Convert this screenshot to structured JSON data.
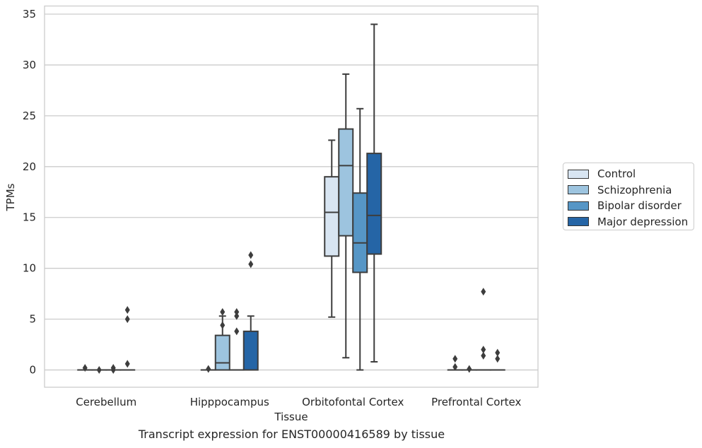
{
  "chart_data": {
    "type": "box",
    "title": "",
    "xlabel": "Tissue",
    "ylabel": "TPMs",
    "caption": "Transcript expression for ENST00000416589 by tissue",
    "ylim": [
      -1.7,
      35.8
    ],
    "yticks": [
      0,
      5,
      10,
      15,
      20,
      25,
      30,
      35
    ],
    "grid": "horizontal",
    "legend_position": "right",
    "categories": [
      "Cerebellum",
      "Hipppocampus",
      "Orbitofontal Cortex",
      "Prefrontal Cortex"
    ],
    "series": [
      {
        "name": "Control",
        "color": "#d8e5f2",
        "boxes": [
          {
            "q1": 0,
            "median": 0,
            "q3": 0,
            "whisker_low": 0,
            "whisker_high": 0,
            "outliers": [
              0.2
            ]
          },
          {
            "q1": 0,
            "median": 0,
            "q3": 0,
            "whisker_low": 0,
            "whisker_high": 0,
            "outliers": [
              0.1
            ]
          },
          {
            "q1": 11.2,
            "median": 15.5,
            "q3": 19.0,
            "whisker_low": 5.2,
            "whisker_high": 22.6,
            "outliers": []
          },
          {
            "q1": 0,
            "median": 0,
            "q3": 0,
            "whisker_low": 0,
            "whisker_high": 0,
            "outliers": [
              0.3,
              1.1
            ]
          }
        ]
      },
      {
        "name": "Schizophrenia",
        "color": "#9dc4df",
        "boxes": [
          {
            "q1": 0,
            "median": 0,
            "q3": 0,
            "whisker_low": 0,
            "whisker_high": 0,
            "outliers": [
              0.0
            ]
          },
          {
            "q1": 0,
            "median": 0.7,
            "q3": 3.4,
            "whisker_low": 0,
            "whisker_high": 5.3,
            "outliers": [
              4.4,
              5.7
            ]
          },
          {
            "q1": 13.2,
            "median": 20.1,
            "q3": 23.7,
            "whisker_low": 1.2,
            "whisker_high": 29.1,
            "outliers": []
          },
          {
            "q1": 0,
            "median": 0,
            "q3": 0,
            "whisker_low": 0,
            "whisker_high": 0,
            "outliers": [
              0.1
            ]
          }
        ]
      },
      {
        "name": "Bipolar disorder",
        "color": "#5696c6",
        "boxes": [
          {
            "q1": 0,
            "median": 0,
            "q3": 0,
            "whisker_low": 0,
            "whisker_high": 0,
            "outliers": [
              0.0,
              0.2
            ]
          },
          {
            "q1": 0,
            "median": 0,
            "q3": 0,
            "whisker_low": 0,
            "whisker_high": 0,
            "outliers": [
              3.8,
              5.3,
              5.7
            ]
          },
          {
            "q1": 9.6,
            "median": 12.5,
            "q3": 17.4,
            "whisker_low": 0,
            "whisker_high": 25.7,
            "outliers": []
          },
          {
            "q1": 0,
            "median": 0,
            "q3": 0,
            "whisker_low": 0,
            "whisker_high": 0,
            "outliers": [
              1.4,
              2.0,
              7.7
            ]
          }
        ]
      },
      {
        "name": "Major depression",
        "color": "#2565a6",
        "boxes": [
          {
            "q1": 0,
            "median": 0,
            "q3": 0,
            "whisker_low": 0,
            "whisker_high": 0,
            "outliers": [
              0.6,
              5.0,
              5.9
            ]
          },
          {
            "q1": 0,
            "median": 0,
            "q3": 3.8,
            "whisker_low": 0,
            "whisker_high": 5.3,
            "outliers": [
              10.4,
              11.3
            ]
          },
          {
            "q1": 11.4,
            "median": 15.2,
            "q3": 21.3,
            "whisker_low": 0.8,
            "whisker_high": 34.0,
            "outliers": []
          },
          {
            "q1": 0,
            "median": 0,
            "q3": 0,
            "whisker_low": 0,
            "whisker_high": 0,
            "outliers": [
              1.1,
              1.7
            ]
          }
        ]
      }
    ]
  }
}
